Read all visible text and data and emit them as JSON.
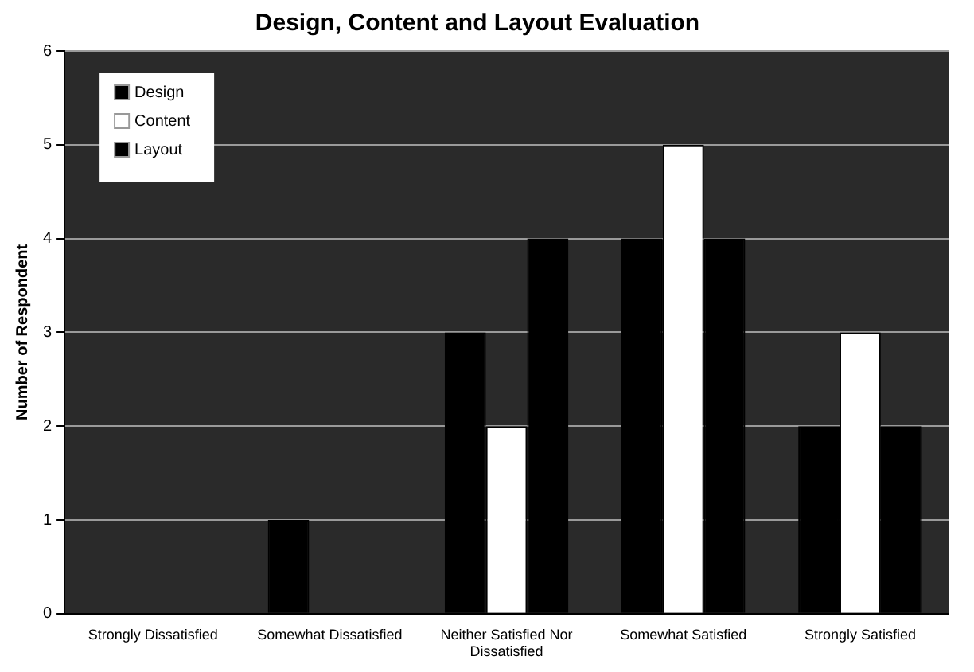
{
  "chart_data": {
    "type": "bar",
    "title": "Design, Content and Layout Evaluation",
    "ylabel": "Number of Respondent",
    "categories": [
      "Strongly Dissatisfied",
      "Somewhat Dissatisfied",
      [
        "Neither Satisfied Nor",
        "Dissatisfied"
      ],
      "Somewhat Satisfied",
      "Strongly Satisfied"
    ],
    "series": [
      {
        "name": "Design",
        "color": "#000000",
        "values": [
          0,
          1,
          3,
          4,
          2
        ]
      },
      {
        "name": "Content",
        "color": "#ffffff",
        "values": [
          0,
          0,
          2,
          5,
          3
        ]
      },
      {
        "name": "Layout",
        "color": "#000000",
        "values": [
          0,
          0,
          4,
          4,
          2
        ]
      }
    ],
    "ylim": [
      0,
      6
    ],
    "yticks": [
      0,
      1,
      2,
      3,
      4,
      5,
      6
    ],
    "grid": "y",
    "legend": "top left"
  }
}
